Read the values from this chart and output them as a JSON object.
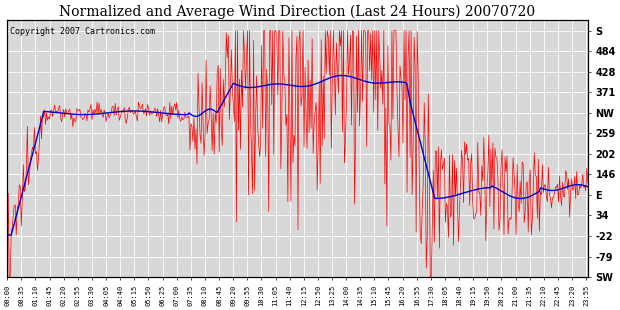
{
  "title": "Normalized and Average Wind Direction (Last 24 Hours) 20070720",
  "copyright": "Copyright 2007 Cartronics.com",
  "background_color": "#ffffff",
  "plot_bg_color": "#d8d8d8",
  "grid_color": "#ffffff",
  "red_line_color": "#ff0000",
  "blue_line_color": "#0000cc",
  "right_ytick_labels": [
    "S",
    "484",
    "428",
    "371",
    "NW",
    "259",
    "202",
    "146",
    "E",
    "34",
    "-22",
    "-79",
    "SW"
  ],
  "right_ytick_values": [
    540,
    484,
    428,
    371,
    315,
    259,
    202,
    146,
    90,
    34,
    -22,
    -79,
    -135
  ],
  "ylim": [
    -135,
    570
  ],
  "title_fontsize": 10,
  "copyright_fontsize": 6
}
